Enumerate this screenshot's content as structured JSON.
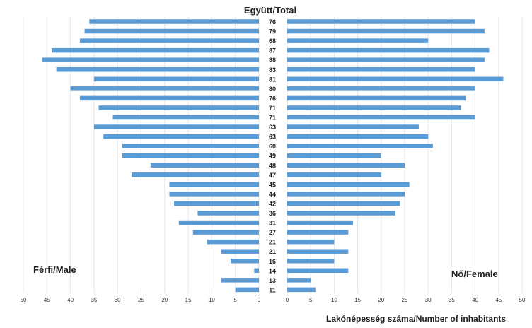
{
  "chart_data": {
    "type": "bar",
    "title": "Együtt/Total",
    "xlabel": "Lakónépesség száma/Number of inhabitants",
    "left_label": "Férfi/Male",
    "right_label": "Nő/Female",
    "categories": [
      "76",
      "79",
      "68",
      "87",
      "88",
      "83",
      "81",
      "80",
      "76",
      "71",
      "71",
      "63",
      "63",
      "60",
      "49",
      "48",
      "47",
      "45",
      "44",
      "42",
      "36",
      "31",
      "27",
      "21",
      "21",
      "16",
      "14",
      "13",
      "11"
    ],
    "series": [
      {
        "name": "Férfi/Male",
        "values": [
          36,
          37,
          38,
          44,
          46,
          43,
          35,
          40,
          38,
          34,
          31,
          35,
          33,
          29,
          29,
          23,
          27,
          19,
          19,
          18,
          13,
          17,
          14,
          11,
          8,
          6,
          1,
          8,
          5
        ]
      },
      {
        "name": "Nő/Female",
        "values": [
          40,
          42,
          30,
          43,
          42,
          40,
          46,
          40,
          38,
          37,
          40,
          28,
          30,
          31,
          20,
          25,
          20,
          26,
          25,
          24,
          23,
          14,
          13,
          10,
          13,
          10,
          13,
          5,
          6
        ]
      }
    ],
    "left_ticks": [
      "50",
      "45",
      "40",
      "35",
      "30",
      "25",
      "20",
      "15",
      "10",
      "5",
      "0"
    ],
    "right_ticks": [
      "0",
      "5",
      "10",
      "15",
      "20",
      "25",
      "30",
      "35",
      "40",
      "45",
      "50"
    ],
    "xlim": [
      0,
      50
    ],
    "bar_color": "#5b9bd5",
    "grid": true,
    "grid_color": "#e6e6e6"
  }
}
